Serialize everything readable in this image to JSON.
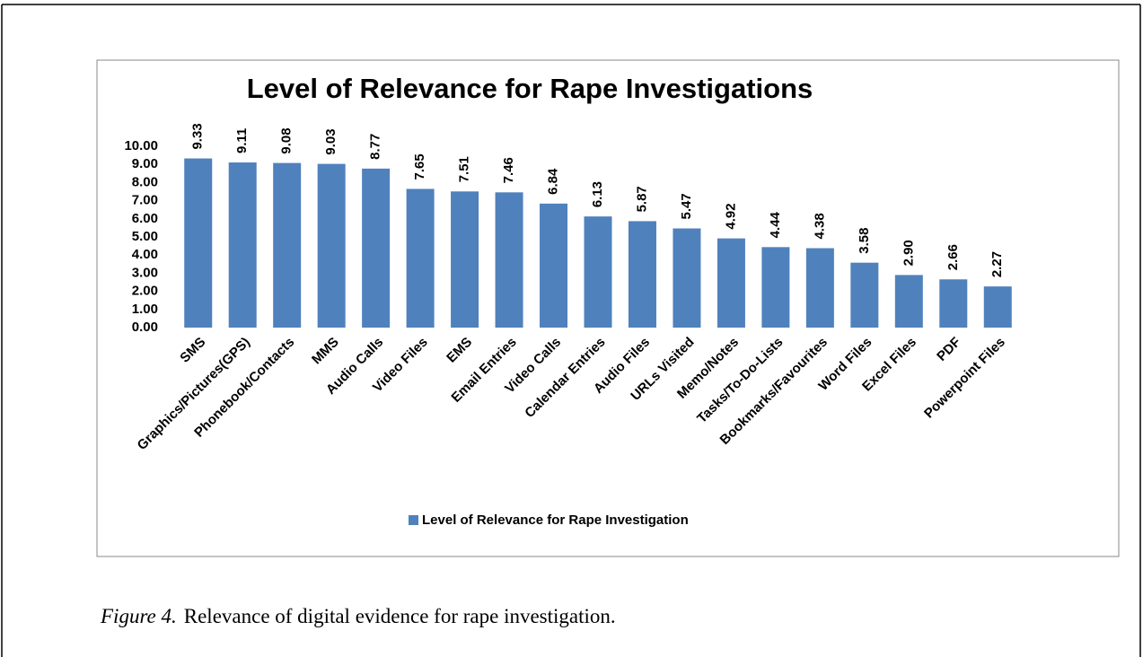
{
  "chart_data": {
    "type": "bar",
    "title": "Level of Relevance for Rape Investigations",
    "categories": [
      "SMS",
      "Graphics/Pictures(GPS)",
      "Phonebook/Contacts",
      "MMS",
      "Audio Calls",
      "Video Files",
      "EMS",
      "Email Entries",
      "Video Calls",
      "Calendar Entries",
      "Audio Files",
      "URLs Visited",
      "Memo/Notes",
      "Tasks/To-Do-Lists",
      "Bookmarks/Favourites",
      "Word Files",
      "Excel Files",
      "PDF",
      "Powerpoint Files"
    ],
    "series": [
      {
        "name": "Level of Relevance for Rape Investigation",
        "color": "#4f81bd",
        "values": [
          9.33,
          9.11,
          9.08,
          9.03,
          8.77,
          7.65,
          7.51,
          7.46,
          6.84,
          6.13,
          5.87,
          5.47,
          4.92,
          4.44,
          4.38,
          3.58,
          2.9,
          2.66,
          2.27
        ],
        "value_labels": [
          "9.33",
          "9.11",
          "9.08",
          "9.03",
          "8.77",
          "7.65",
          "7.51",
          "7.46",
          "6.84",
          "6.13",
          "5.87",
          "5.47",
          "4.92",
          "4.44",
          "4.38",
          "3.58",
          "2.90",
          "2.66",
          "2.27"
        ]
      }
    ],
    "ylim": [
      0,
      10
    ],
    "yticks": [
      {
        "value": 0,
        "label": "0.00"
      },
      {
        "value": 1,
        "label": "1.00"
      },
      {
        "value": 2,
        "label": "2.00"
      },
      {
        "value": 3,
        "label": "3.00"
      },
      {
        "value": 4,
        "label": "4.00"
      },
      {
        "value": 5,
        "label": "5.00"
      },
      {
        "value": 6,
        "label": "6.00"
      },
      {
        "value": 7,
        "label": "7.00"
      },
      {
        "value": 8,
        "label": "8.00"
      },
      {
        "value": 9,
        "label": "9.00"
      },
      {
        "value": 10,
        "label": "10.00"
      }
    ],
    "grid": false,
    "legend": "bottom"
  },
  "caption": {
    "label": "Figure 4.",
    "text": "Relevance of digital evidence for rape investigation."
  }
}
